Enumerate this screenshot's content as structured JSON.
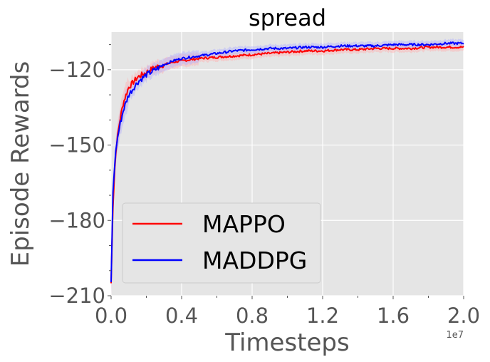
{
  "chart_data": {
    "type": "line",
    "title": "spread",
    "xlabel": "Timesteps",
    "ylabel": "Episode Rewards",
    "x_offset_label": "1e7",
    "xlim": [
      0,
      2.0
    ],
    "ylim": [
      -210,
      -105
    ],
    "xticks": [
      0.0,
      0.4,
      0.8,
      1.2,
      1.6,
      2.0
    ],
    "xtick_labels": [
      "0.0",
      "0.4",
      "0.8",
      "1.2",
      "1.6",
      "2.0"
    ],
    "yticks": [
      -210,
      -180,
      -150,
      -120
    ],
    "ytick_labels": [
      "−210",
      "−180",
      "−150",
      "−120"
    ],
    "grid": true,
    "legend_position": "lower-left",
    "series": [
      {
        "name": "MAPPO",
        "color": "#ff0000",
        "band_color": "#ffb0b0",
        "x": [
          0.0,
          0.01,
          0.02,
          0.03,
          0.05,
          0.07,
          0.1,
          0.15,
          0.2,
          0.25,
          0.3,
          0.35,
          0.4,
          0.5,
          0.6,
          0.7,
          0.8,
          0.9,
          1.0,
          1.1,
          1.2,
          1.3,
          1.4,
          1.5,
          1.6,
          1.7,
          1.8,
          1.9,
          2.0
        ],
        "y": [
          -205,
          -175,
          -160,
          -150,
          -140,
          -133,
          -127,
          -123,
          -121,
          -119,
          -118,
          -117,
          -116.5,
          -115.5,
          -115,
          -114.5,
          -114,
          -113.5,
          -113,
          -112.5,
          -112.5,
          -112,
          -112,
          -111.5,
          -111.5,
          -111.5,
          -111,
          -111,
          -111
        ]
      },
      {
        "name": "MADDPG",
        "color": "#0000ff",
        "band_color": "#b0b0ff",
        "x": [
          0.0,
          0.01,
          0.02,
          0.03,
          0.05,
          0.07,
          0.1,
          0.15,
          0.2,
          0.25,
          0.3,
          0.35,
          0.4,
          0.5,
          0.6,
          0.7,
          0.8,
          0.9,
          1.0,
          1.1,
          1.2,
          1.3,
          1.4,
          1.5,
          1.6,
          1.7,
          1.8,
          1.9,
          2.0
        ],
        "y": [
          -205,
          -170,
          -158,
          -150,
          -142,
          -136,
          -130,
          -125,
          -122,
          -120,
          -118,
          -116.5,
          -115.5,
          -114.5,
          -113.5,
          -112.5,
          -112,
          -111.5,
          -111.5,
          -111,
          -111,
          -110.5,
          -110.5,
          -110.5,
          -110,
          -110,
          -110,
          -109.5,
          -109.5
        ]
      }
    ]
  }
}
